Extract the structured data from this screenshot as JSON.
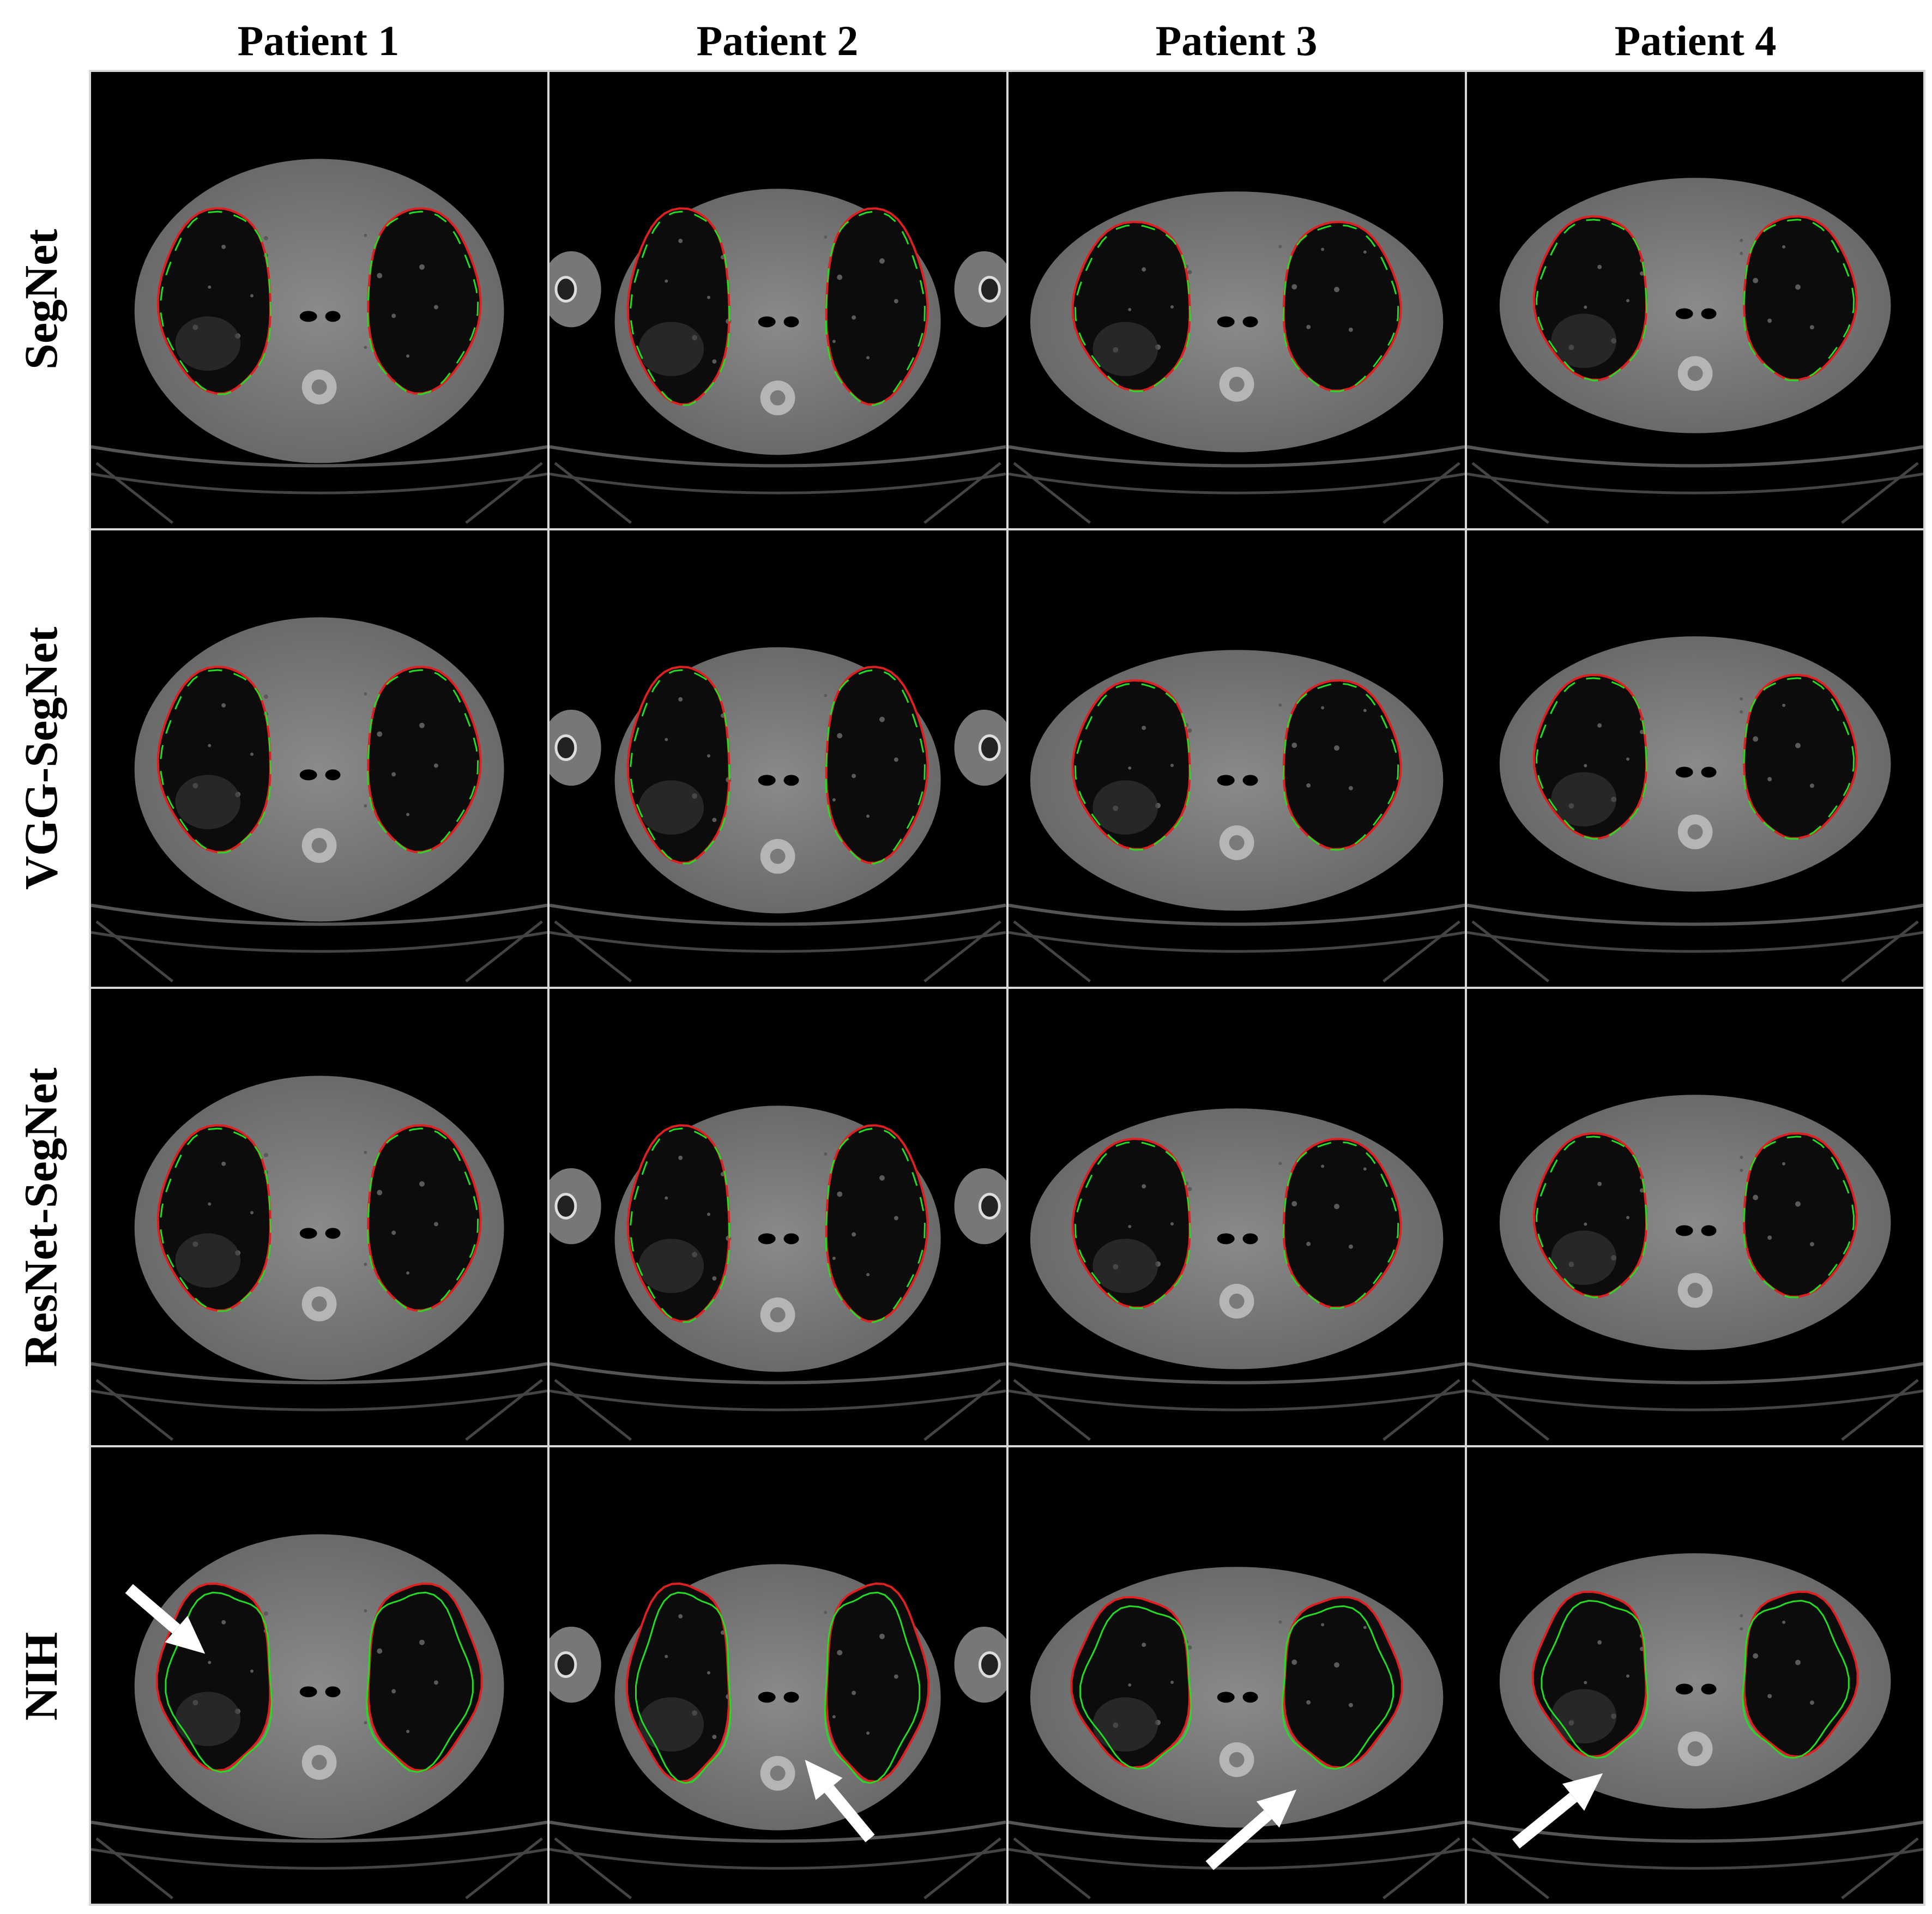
{
  "columns": [
    "Patient 1",
    "Patient 2",
    "Patient 3",
    "Patient 4"
  ],
  "rows": [
    "SegNet",
    "VGG-SegNet",
    "ResNet-SegNet",
    "NIH"
  ],
  "contour_colors": {
    "ground_truth": "#e02020",
    "prediction": "#22dd22"
  },
  "arrow_color": "#ffffff",
  "arrows_row": "NIH"
}
